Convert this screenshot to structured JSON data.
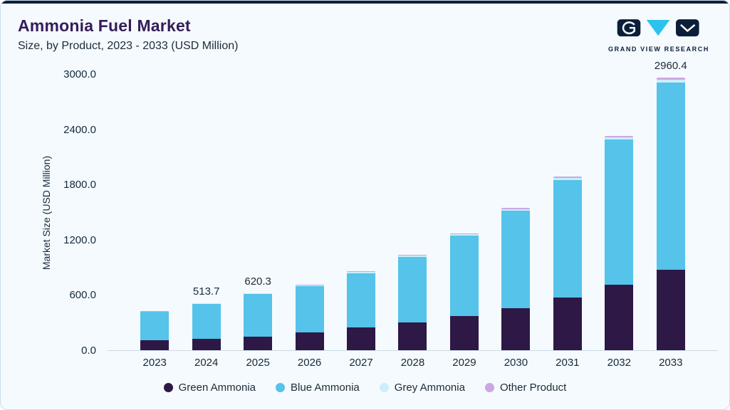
{
  "page": {
    "title": "Ammonia Fuel Market",
    "subtitle": "Size, by Product, 2023 - 2033 (USD Million)"
  },
  "logo": {
    "text": "GRAND VIEW RESEARCH",
    "navy": "#0d1e3a",
    "cyan": "#2bc2ee"
  },
  "chart_data": {
    "type": "bar",
    "stacked": true,
    "title": "Ammonia Fuel Market Size, by Product, 2023 - 2033 (USD Million)",
    "ylabel": "Market Size (USD Million)",
    "xlabel": "",
    "ylim": [
      0,
      3000
    ],
    "ytick_step": 600,
    "ytick_labels": [
      "0.0",
      "600.0",
      "1200.0",
      "1800.0",
      "2400.0",
      "3000.0"
    ],
    "grid": false,
    "legend_position": "bottom",
    "categories": [
      "2023",
      "2024",
      "2025",
      "2026",
      "2027",
      "2028",
      "2029",
      "2030",
      "2031",
      "2032",
      "2033"
    ],
    "series": [
      {
        "name": "Green Ammonia",
        "color": "#2d1846",
        "values": [
          105,
          120,
          150,
          195,
          245,
          305,
          375,
          455,
          570,
          715,
          870
        ]
      },
      {
        "name": "Blue Ammonia",
        "color": "#55c3ea",
        "values": [
          311.4,
          383.7,
          458.3,
          501,
          593,
          710,
          871,
          1061,
          1281,
          1574,
          2040.4
        ]
      },
      {
        "name": "Grey Ammonia",
        "color": "#cceefb",
        "values": [
          5,
          6,
          7,
          8,
          10,
          12,
          14,
          17,
          20,
          24,
          30
        ]
      },
      {
        "name": "Other Product",
        "color": "#cda6e4",
        "values": [
          4,
          4,
          5,
          6,
          7,
          8,
          10,
          12,
          14,
          17,
          20
        ]
      }
    ],
    "bar_total_labels": [
      "",
      "513.7",
      "620.3",
      "",
      "",
      "",
      "",
      "",
      "",
      "",
      "2960.4"
    ]
  }
}
